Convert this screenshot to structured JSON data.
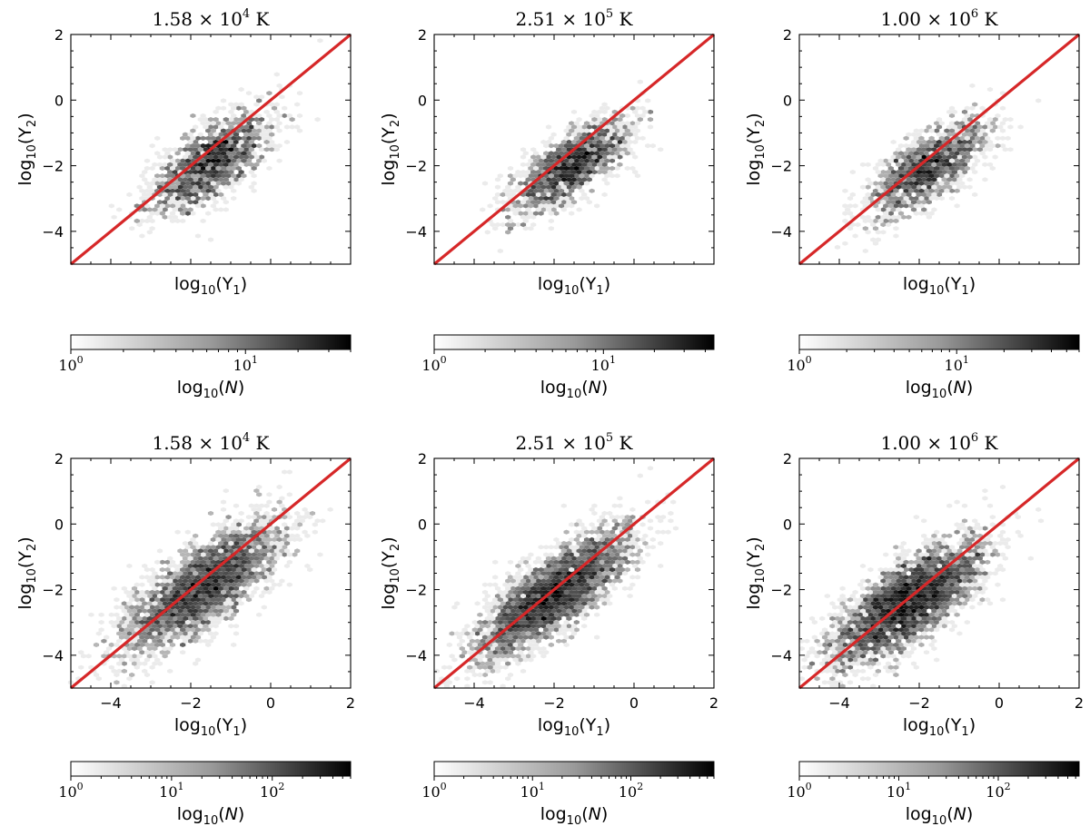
{
  "figure": {
    "panel_title_suffix": "K",
    "colorbar_label_base": "log",
    "colorbar_label_sub": "10",
    "colorbar_label_var": "N"
  },
  "chart_data": [
    {
      "type": "heatmap",
      "subtype": "hexbin",
      "title_mantissa": "1.58",
      "title_exponent": "4",
      "title": "1.58 × 10^4 K",
      "xlabel": "log10(Y1)",
      "ylabel": "log10(Y2)",
      "xlim": [
        -5,
        2
      ],
      "ylim": [
        -5,
        2
      ],
      "xticks": [
        -4,
        -2,
        0,
        2
      ],
      "yticks": [
        -4,
        -2,
        0,
        2
      ],
      "show_x_ticklabels": false,
      "reference_line": {
        "x": [
          -5,
          2
        ],
        "y": [
          -5,
          2
        ],
        "color": "#d62728"
      },
      "density": {
        "center": [
          -1.5,
          -1.9
        ],
        "spread_along": 1.0,
        "spread_across": 0.45,
        "offset_below_line": 0.4,
        "count": 1400,
        "seed": 11
      },
      "colorbar": {
        "scale": "log",
        "min": 1,
        "max": 40,
        "tick_exponents": [
          0,
          1
        ],
        "tick_labels": [
          "10",
          "10"
        ]
      }
    },
    {
      "type": "heatmap",
      "subtype": "hexbin",
      "title_mantissa": "2.51",
      "title_exponent": "5",
      "title": "2.51 × 10^5 K",
      "xlabel": "log10(Y1)",
      "ylabel": "log10(Y2)",
      "xlim": [
        -5,
        2
      ],
      "ylim": [
        -5,
        2
      ],
      "xticks": [
        -4,
        -2,
        0,
        2
      ],
      "yticks": [
        -4,
        -2,
        0,
        2
      ],
      "show_x_ticklabels": false,
      "reference_line": {
        "x": [
          -5,
          2
        ],
        "y": [
          -5,
          2
        ],
        "color": "#d62728"
      },
      "density": {
        "center": [
          -1.6,
          -2.0
        ],
        "spread_along": 1.0,
        "spread_across": 0.4,
        "offset_below_line": 0.4,
        "count": 1400,
        "seed": 23
      },
      "colorbar": {
        "scale": "log",
        "min": 1,
        "max": 45,
        "tick_exponents": [
          0,
          1
        ],
        "tick_labels": [
          "10",
          "10"
        ]
      }
    },
    {
      "type": "heatmap",
      "subtype": "hexbin",
      "title_mantissa": "1.00",
      "title_exponent": "6",
      "title": "1.00 × 10^6 K",
      "xlabel": "log10(Y1)",
      "ylabel": "log10(Y2)",
      "xlim": [
        -5,
        2
      ],
      "ylim": [
        -5,
        2
      ],
      "xticks": [
        -4,
        -2,
        0,
        2
      ],
      "yticks": [
        -4,
        -2,
        0,
        2
      ],
      "show_x_ticklabels": false,
      "reference_line": {
        "x": [
          -5,
          2
        ],
        "y": [
          -5,
          2
        ],
        "color": "#d62728"
      },
      "density": {
        "center": [
          -1.8,
          -2.1
        ],
        "spread_along": 1.0,
        "spread_across": 0.42,
        "offset_below_line": 0.3,
        "count": 1400,
        "seed": 37
      },
      "colorbar": {
        "scale": "log",
        "min": 1,
        "max": 60,
        "tick_exponents": [
          0,
          1
        ],
        "tick_labels": [
          "10",
          "10"
        ]
      }
    },
    {
      "type": "heatmap",
      "subtype": "hexbin",
      "title_mantissa": "1.58",
      "title_exponent": "4",
      "title": "1.58 × 10^4 K",
      "xlabel": "log10(Y1)",
      "ylabel": "log10(Y2)",
      "xlim": [
        -5,
        2
      ],
      "ylim": [
        -5,
        2
      ],
      "xticks": [
        -4,
        -2,
        0,
        2
      ],
      "yticks": [
        -4,
        -2,
        0,
        2
      ],
      "xtick_labels": [
        "−4",
        "−2",
        "0",
        "2"
      ],
      "ytick_labels": [
        "−4",
        "−2",
        "0",
        "2"
      ],
      "show_x_ticklabels": true,
      "reference_line": {
        "x": [
          -5,
          2
        ],
        "y": [
          -5,
          2
        ],
        "color": "#d62728"
      },
      "density": {
        "center": [
          -1.7,
          -1.9
        ],
        "spread_along": 1.3,
        "spread_across": 0.5,
        "offset_below_line": 0.15,
        "count": 3200,
        "seed": 51
      },
      "colorbar": {
        "scale": "log",
        "min": 1,
        "max": 600,
        "tick_exponents": [
          0,
          1,
          2
        ],
        "tick_labels": [
          "10",
          "10",
          "10"
        ]
      }
    },
    {
      "type": "heatmap",
      "subtype": "hexbin",
      "title_mantissa": "2.51",
      "title_exponent": "5",
      "title": "2.51 × 10^5 K",
      "xlabel": "log10(Y1)",
      "ylabel": "log10(Y2)",
      "xlim": [
        -5,
        2
      ],
      "ylim": [
        -5,
        2
      ],
      "xticks": [
        -4,
        -2,
        0,
        2
      ],
      "yticks": [
        -4,
        -2,
        0,
        2
      ],
      "xtick_labels": [
        "−4",
        "−2",
        "0",
        "2"
      ],
      "ytick_labels": [
        "−4",
        "−2",
        "0",
        "2"
      ],
      "show_x_ticklabels": true,
      "reference_line": {
        "x": [
          -5,
          2
        ],
        "y": [
          -5,
          2
        ],
        "color": "#d62728"
      },
      "density": {
        "center": [
          -2.0,
          -2.1
        ],
        "spread_along": 1.3,
        "spread_across": 0.45,
        "offset_below_line": 0.05,
        "count": 3200,
        "seed": 67
      },
      "colorbar": {
        "scale": "log",
        "min": 1,
        "max": 700,
        "tick_exponents": [
          0,
          1,
          2
        ],
        "tick_labels": [
          "10",
          "10",
          "10"
        ]
      }
    },
    {
      "type": "heatmap",
      "subtype": "hexbin",
      "title_mantissa": "1.00",
      "title_exponent": "6",
      "title": "1.00 × 10^6 K",
      "xlabel": "log10(Y1)",
      "ylabel": "log10(Y2)",
      "xlim": [
        -5,
        2
      ],
      "ylim": [
        -5,
        2
      ],
      "xticks": [
        -4,
        -2,
        0,
        2
      ],
      "yticks": [
        -4,
        -2,
        0,
        2
      ],
      "xtick_labels": [
        "−4",
        "−2",
        "0",
        "2"
      ],
      "ytick_labels": [
        "−4",
        "−2",
        "0",
        "2"
      ],
      "show_x_ticklabels": true,
      "reference_line": {
        "x": [
          -5,
          2
        ],
        "y": [
          -5,
          2
        ],
        "color": "#d62728"
      },
      "density": {
        "center": [
          -2.3,
          -2.4
        ],
        "spread_along": 1.3,
        "spread_across": 0.5,
        "offset_below_line": 0.05,
        "count": 3200,
        "seed": 83
      },
      "colorbar": {
        "scale": "log",
        "min": 1,
        "max": 650,
        "tick_exponents": [
          0,
          1,
          2
        ],
        "tick_labels": [
          "10",
          "10",
          "10"
        ]
      }
    }
  ]
}
